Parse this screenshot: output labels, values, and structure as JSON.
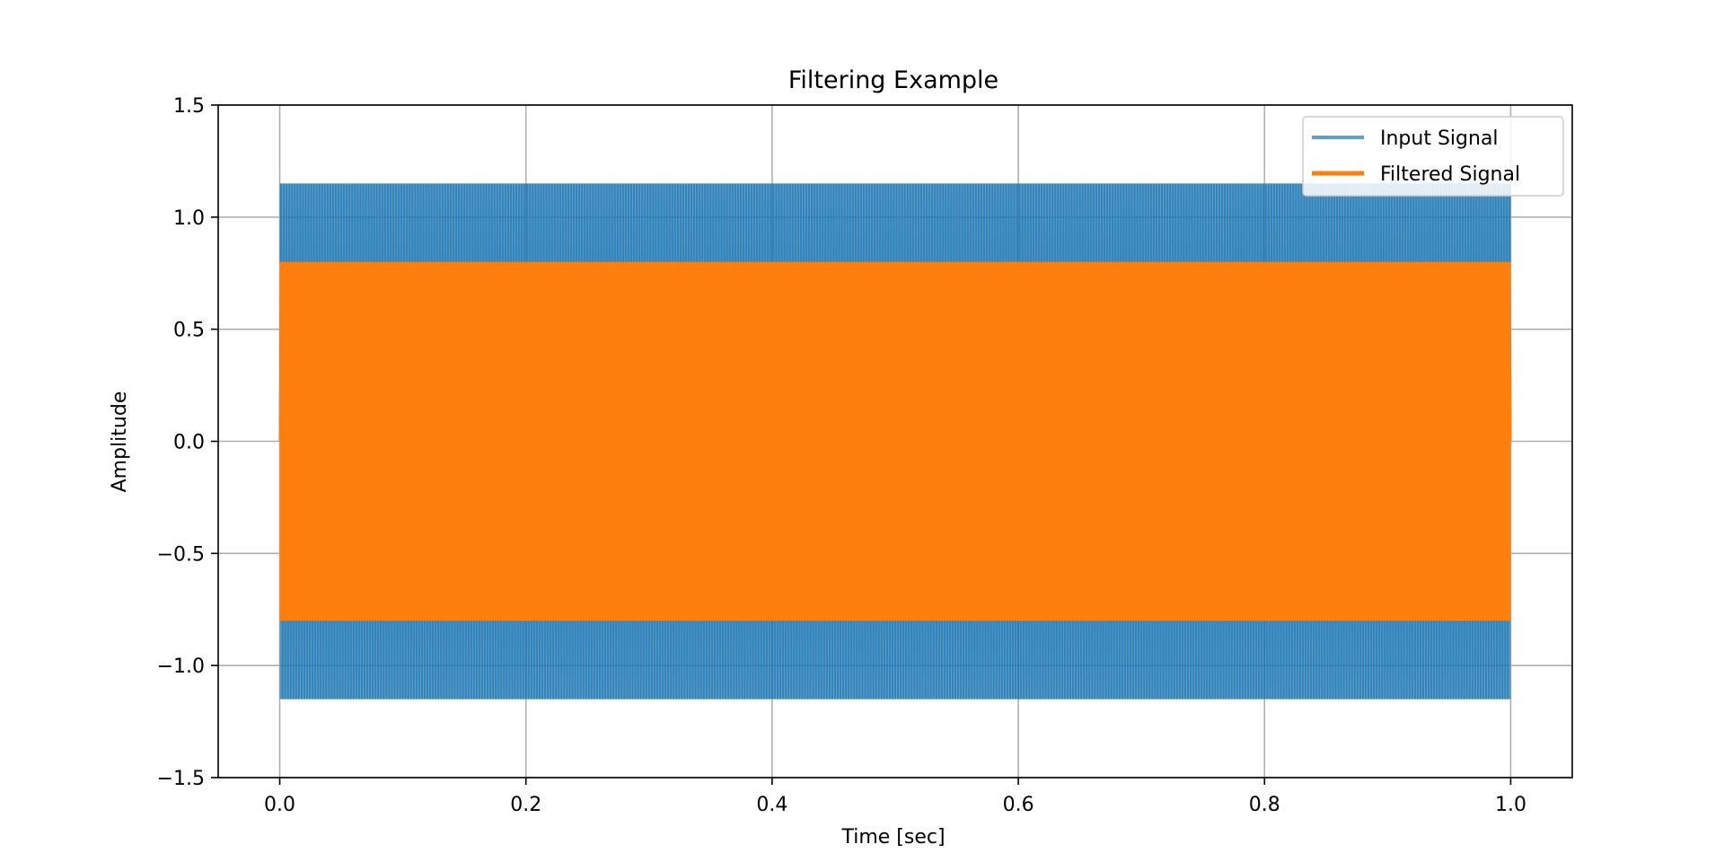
{
  "chart_data": {
    "type": "line",
    "title": "Filtering Example",
    "xlabel": "Time [sec]",
    "ylabel": "Amplitude",
    "xlim": [
      -0.05,
      1.05
    ],
    "ylim": [
      -1.5,
      1.5
    ],
    "xticks": [
      0.0,
      0.2,
      0.4,
      0.6,
      0.8,
      1.0
    ],
    "xtick_labels": [
      "0.0",
      "0.2",
      "0.4",
      "0.6",
      "0.8",
      "1.0"
    ],
    "yticks": [
      -1.5,
      -1.0,
      -0.5,
      0.0,
      0.5,
      1.0,
      1.5
    ],
    "ytick_labels": [
      "−1.5",
      "−1.0",
      "−0.5",
      "0.0",
      "0.5",
      "1.0",
      "1.5"
    ],
    "grid": true,
    "legend_position": "top-right",
    "series": [
      {
        "name": "Input Signal",
        "color": "#1f77b4",
        "opacity": 0.7,
        "x_range": [
          0.0,
          1.0
        ],
        "amplitude": 1.15,
        "note_visual": "dense oscillation filling band"
      },
      {
        "name": "Filtered Signal",
        "color": "#ff7f0e",
        "opacity": 1.0,
        "x_range": [
          0.0,
          1.0
        ],
        "amplitude": 0.8
      }
    ]
  }
}
